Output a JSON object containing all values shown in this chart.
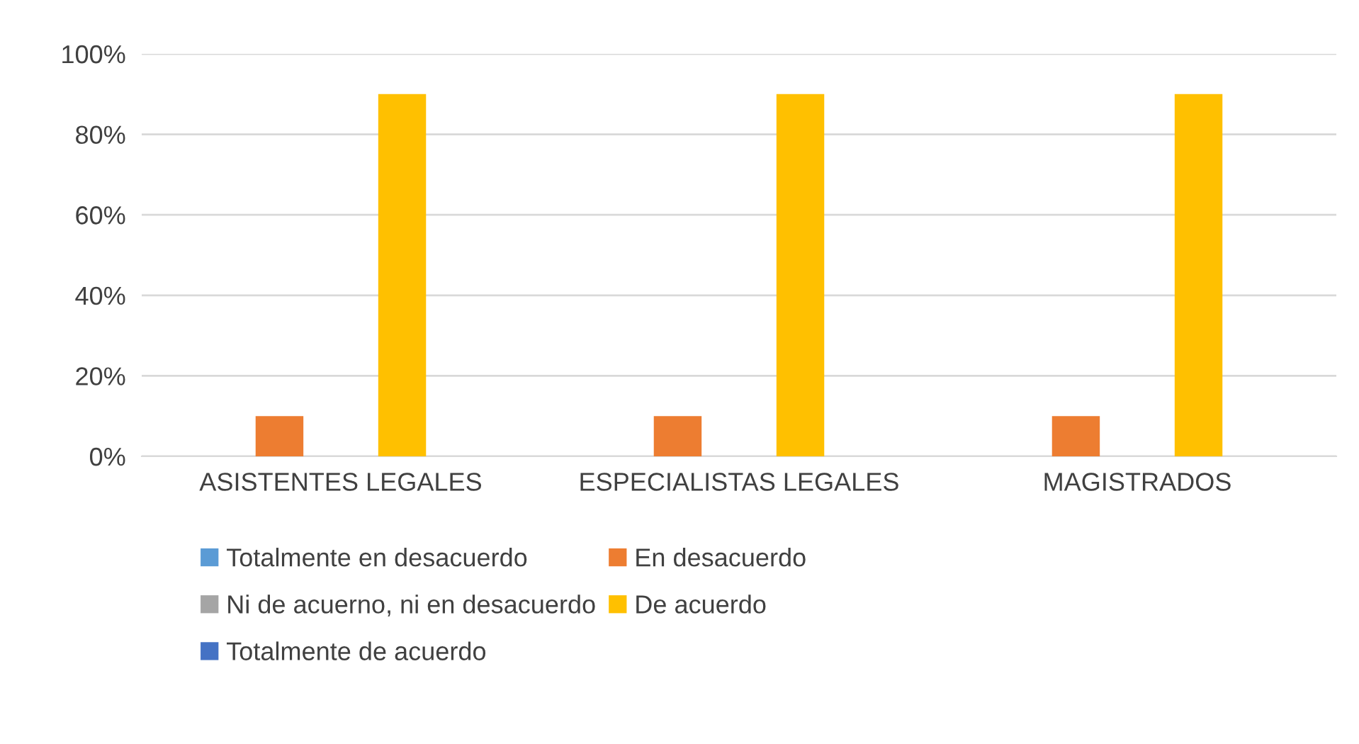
{
  "chart_data": {
    "type": "bar",
    "categories": [
      "ASISTENTES LEGALES",
      "ESPECIALISTAS LEGALES",
      "MAGISTRADOS"
    ],
    "series": [
      {
        "name": "Totalmente en desacuerdo",
        "color": "#5b9bd5",
        "values": [
          0,
          0,
          0
        ]
      },
      {
        "name": "En desacuerdo",
        "color": "#ed7d31",
        "values": [
          10,
          10,
          10
        ]
      },
      {
        "name": "Ni de acuerno, ni en desacuerdo",
        "color": "#a5a5a5",
        "values": [
          0,
          0,
          0
        ]
      },
      {
        "name": "De acuerdo",
        "color": "#ffc000",
        "values": [
          90,
          90,
          90
        ]
      },
      {
        "name": "Totalmente de acuerdo",
        "color": "#4472c4",
        "values": [
          0,
          0,
          0
        ]
      }
    ],
    "ylim": [
      0,
      100
    ],
    "yticks": [
      {
        "value": 0,
        "label": "0%"
      },
      {
        "value": 20,
        "label": "20%"
      },
      {
        "value": 40,
        "label": "40%"
      },
      {
        "value": 60,
        "label": "60%"
      },
      {
        "value": 80,
        "label": "80%"
      },
      {
        "value": 100,
        "label": "100%"
      }
    ],
    "grid": "y",
    "legend": "bottom"
  }
}
